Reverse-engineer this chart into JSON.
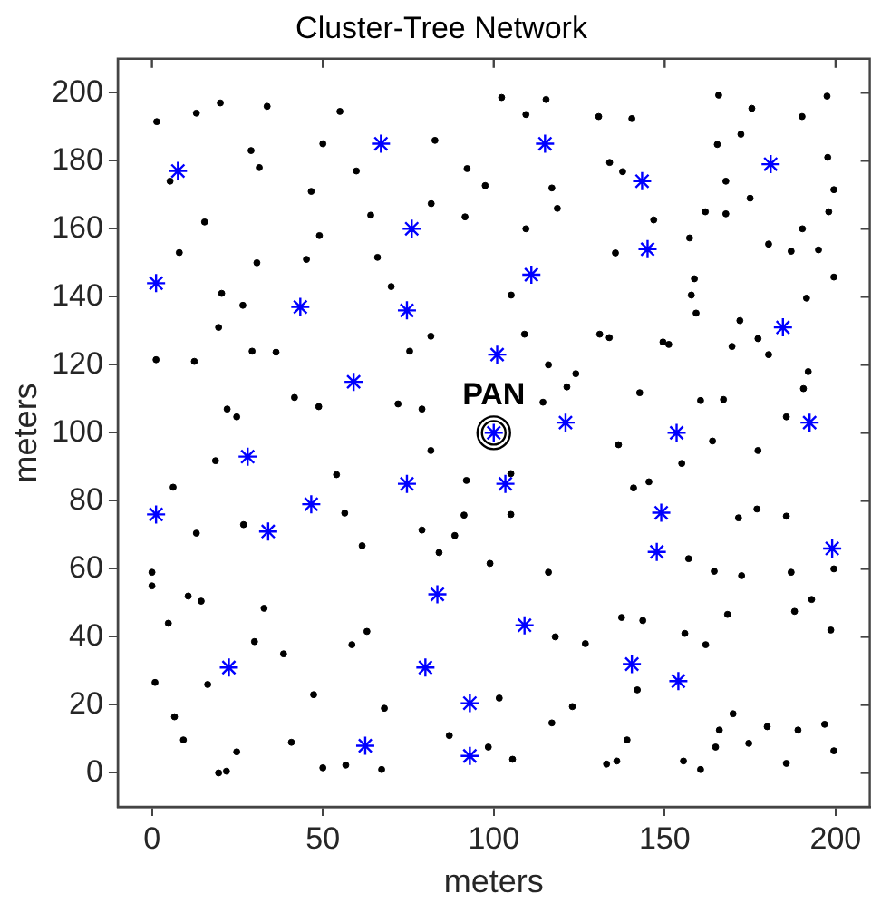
{
  "chart_data": {
    "type": "scatter",
    "title": "Cluster-Tree Network",
    "xlabel": "meters",
    "ylabel": "meters",
    "xlim": [
      -10,
      210
    ],
    "ylim": [
      -10,
      210
    ],
    "xticks": [
      0,
      50,
      100,
      150,
      200
    ],
    "yticks": [
      0,
      20,
      40,
      60,
      80,
      100,
      120,
      140,
      160,
      180,
      200
    ],
    "grid": false,
    "legend": false,
    "annotations": [
      {
        "text": "PAN",
        "x": 100,
        "y": 100
      }
    ],
    "series": [
      {
        "color": "#000000",
        "marker": "circle",
        "x": [
          1.4,
          13,
          20,
          33.7,
          29,
          31.4,
          5.3,
          15.4,
          8,
          20.4,
          19.5,
          12.4,
          1.2,
          22,
          24.8,
          18.6,
          6.2,
          0,
          0,
          4.8,
          0.9,
          6.6,
          9.2,
          19.5,
          21.8,
          24.8,
          16.3,
          10.6,
          14.4,
          13,
          26.8,
          30,
          32.8,
          38.5,
          40.8,
          47.3,
          50,
          56.7,
          58.5,
          67.2,
          68,
          62.9,
          61.5,
          56.4,
          54,
          48.8,
          41.7,
          36.3,
          29.3,
          26.6,
          30.7,
          45.2,
          49,
          46.6,
          50,
          55,
          59.8,
          64,
          66,
          70,
          75.4,
          81.6,
          79,
          72,
          81.6,
          79,
          84,
          88.6,
          87,
          98.4,
          105.5,
          101.6,
          98.9,
          91.3,
          92,
          105,
          105,
          116,
          118,
          117,
          123,
          126.8,
          133,
          136,
          139,
          142,
          137.4,
          143.6,
          155.9,
          155.5,
          160.5,
          164.9,
          166,
          170,
          174.6,
          180,
          185.6,
          189,
          196.8,
          199.5,
          193,
          188,
          187,
          198.6,
          199.5,
          185.6,
          177,
          171.6,
          172.5,
          164.5,
          162,
          168.4,
          157,
          155,
          145.4,
          140.9,
          136.5,
          142.7,
          133.8,
          131,
          124,
          121.4,
          116,
          114.4,
          109,
          105.1,
          109.4,
          117,
          118.6,
          115.3,
          109.4,
          102.3,
          92.2,
          97.5,
          91.6,
          81.7,
          82.8,
          130.7,
          133.9,
          140.4,
          137.7,
          135.6,
          146.8,
          157.3,
          161.9,
          167.9,
          165.4,
          165.8,
          175.5,
          172.3,
          167.9,
          175,
          180.4,
          187,
          190.3,
          198,
          197.7,
          190.2,
          197.5,
          199.5,
          199.5,
          191.5,
          195,
          180.4,
          177.3,
          172,
          169.7,
          167.2,
          160.5,
          164,
          177.3,
          192,
          185.6,
          190.6,
          158.7,
          157.8,
          159.2,
          151.2,
          149.5
        ],
        "values": [
          191.5,
          194,
          197,
          196,
          183,
          178,
          174,
          162,
          153,
          141,
          131,
          121,
          121.5,
          107,
          104.7,
          91.8,
          84,
          59,
          55,
          44,
          26.6,
          16.5,
          9.7,
          0,
          0.5,
          6.2,
          26,
          52,
          50.5,
          70.5,
          73,
          38.6,
          48.4,
          35,
          9,
          23,
          1.5,
          2.3,
          37.7,
          1,
          19,
          41.6,
          66.8,
          76.4,
          87.7,
          107.7,
          110.4,
          123.7,
          124,
          137.5,
          150,
          151,
          158,
          171,
          185,
          194.5,
          177,
          164,
          151.6,
          143,
          124,
          128.4,
          107,
          108.5,
          94.8,
          71.4,
          64.8,
          69.8,
          11,
          7.6,
          4,
          22,
          61.6,
          75.8,
          86,
          88,
          76,
          59,
          40,
          14.7,
          19.5,
          38,
          2.6,
          3.5,
          9.7,
          24.4,
          45.7,
          44.8,
          41,
          3.5,
          1,
          7.6,
          12.6,
          17.4,
          8.7,
          13.6,
          2.8,
          12.6,
          14.3,
          6.5,
          51,
          47.5,
          59,
          42,
          60,
          75.5,
          77.6,
          75,
          58,
          59.3,
          37.7,
          46.6,
          63,
          91,
          85.6,
          83.8,
          96.5,
          111.8,
          128,
          129,
          117.4,
          113.5,
          120,
          109,
          129,
          140.5,
          160,
          172,
          166,
          198,
          193.6,
          198.6,
          177.7,
          172.7,
          163.5,
          167.4,
          186,
          193,
          179.5,
          192.4,
          176.8,
          152.9,
          162.6,
          157.3,
          165,
          164.4,
          184.8,
          199.3,
          195.4,
          187.8,
          174,
          169,
          155.5,
          153.4,
          160,
          165,
          181,
          193,
          199,
          171.5,
          145.8,
          139.6,
          153.8,
          123,
          127.7,
          133,
          125.4,
          109.8,
          109.5,
          97.6,
          94.8,
          118,
          104.7,
          113,
          145.3,
          140.5,
          135.2,
          126,
          126.7
        ]
      },
      {
        "color": "#0000ff",
        "marker": "cross",
        "x": [
          7.6,
          1.2,
          1.2,
          28,
          34,
          22.5,
          43.4,
          46.6,
          59,
          67,
          62.4,
          76,
          74.6,
          74.6,
          80,
          83.5,
          93,
          93,
          101,
          100,
          103.4,
          111,
          115,
          121,
          109,
          143.4,
          145,
          153.5,
          149,
          147.7,
          140.4,
          154,
          181,
          184.6,
          192.4,
          199
        ],
        "values": [
          177,
          144,
          76,
          93,
          71,
          31,
          137,
          79,
          115,
          185,
          8,
          160,
          136,
          85,
          31,
          52.5,
          20.5,
          5,
          123,
          100,
          85,
          146.5,
          185,
          103,
          43.4,
          174,
          154,
          100,
          76.5,
          65,
          32,
          27,
          179,
          131,
          103,
          66
        ]
      }
    ]
  }
}
